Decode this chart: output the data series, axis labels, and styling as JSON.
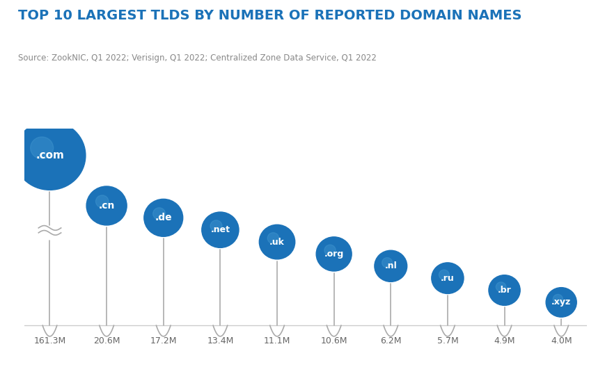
{
  "title": "TOP 10 LARGEST TLDS BY NUMBER OF REPORTED DOMAIN NAMES",
  "source": "Source: ZookNIC, Q1 2022; Verisign, Q1 2022; Centralized Zone Data Service, Q1 2022",
  "tlds": [
    ".com",
    ".cn",
    ".de",
    ".net",
    ".uk",
    ".org",
    ".nl",
    ".ru",
    ".br",
    ".xyz"
  ],
  "values_m": [
    161.3,
    20.6,
    17.2,
    13.4,
    11.1,
    10.6,
    6.2,
    5.7,
    4.9,
    4.0
  ],
  "labels": [
    "161.3M",
    "20.6M",
    "17.2M",
    "13.4M",
    "11.1M",
    "10.6M",
    "6.2M",
    "5.7M",
    "4.9M",
    "4.0M"
  ],
  "ball_color": "#1b72b8",
  "stem_color": "#aaaaaa",
  "background_color": "#ffffff",
  "title_color": "#1b72b8",
  "source_color": "#888888",
  "label_color": "#666666",
  "title_fontsize": 14,
  "source_fontsize": 8.5,
  "label_fontsize": 9,
  "tld_fontsize": 10
}
